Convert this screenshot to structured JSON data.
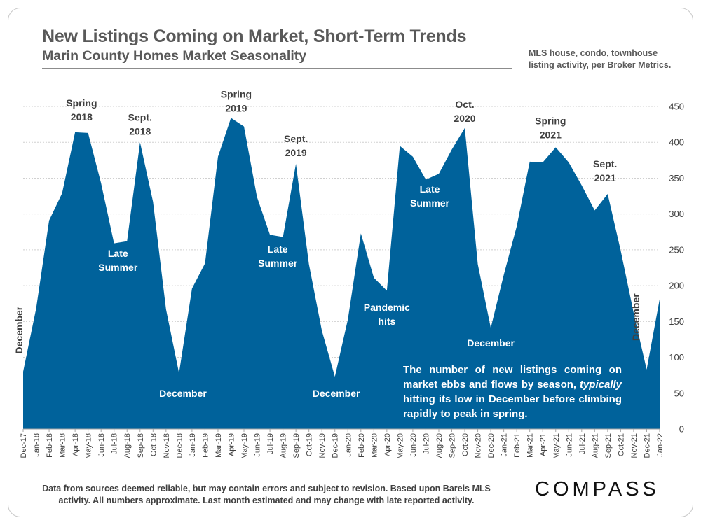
{
  "header": {
    "title": "New Listings Coming on Market, Short-Term Trends",
    "subtitle": "Marin County Homes Market Seasonality",
    "note_line1": "MLS house, condo, townhouse",
    "note_line2": "listing activity, per Broker Metrics."
  },
  "footer": {
    "disclaimer_line1": "Data from sources deemed reliable, but may contain errors and subject to revision. Based upon Bareis MLS",
    "disclaimer_line2": "activity. All numbers approximate. Last month estimated and may change with late reported activity.",
    "logo": "COMPASS"
  },
  "callout": {
    "before": "The number of new listings coming on market ebbs and flows by season,",
    "emphasis": "typically",
    "after": "hitting its low in December before climbing rapidly to peak in  spring."
  },
  "colors": {
    "area": "#00629b",
    "text": "#595959",
    "dark_label": "#404040",
    "white": "#ffffff"
  },
  "chart_data": {
    "type": "area",
    "title": "New Listings Coming on Market, Short-Term Trends",
    "xlabel": "",
    "ylabel": "",
    "ylim": [
      0,
      450
    ],
    "yticks": [
      0,
      50,
      100,
      150,
      200,
      250,
      300,
      350,
      400,
      450
    ],
    "grid": true,
    "categories": [
      "Dec-17",
      "Jan-18",
      "Feb-18",
      "Mar-18",
      "Apr-18",
      "May-18",
      "Jun-18",
      "Jul-18",
      "Aug-18",
      "Sep-18",
      "Oct-18",
      "Nov-18",
      "Dec-18",
      "Jan-19",
      "Feb-19",
      "Mar-19",
      "Apr-19",
      "May-19",
      "Jun-19",
      "Jul-19",
      "Aug-19",
      "Sep-19",
      "Oct-19",
      "Nov-19",
      "Dec-19",
      "Jan-20",
      "Feb-20",
      "Mar-20",
      "Apr-20",
      "May-20",
      "Jun-20",
      "Jul-20",
      "Aug-20",
      "Sep-20",
      "Oct-20",
      "Nov-20",
      "Dec-20",
      "Jan-21",
      "Feb-21",
      "Mar-21",
      "Apr-21",
      "May-21",
      "Jun-21",
      "Jul-21",
      "Aug-21",
      "Sep-21",
      "Oct-21",
      "Nov-21",
      "Dec-21",
      "Jan-22"
    ],
    "labeled_categories": [
      "Dec-17",
      "Jan-18",
      "Feb-18",
      "Mar-18",
      "Apr-18",
      "May-18",
      "Jun-18",
      "Jul-18",
      "Aug-18",
      "Sep-18",
      "Oct-18",
      "Nov-18",
      "Dec-18",
      "Jan-19",
      "Feb-19",
      "Mar-19",
      "Apr-19",
      "May-19",
      "Jun-19",
      "Jul-19",
      "Aug-19",
      "Sep-19",
      "Oct-19",
      "Nov-19",
      "Dec-19",
      "Jan-20",
      "Feb-20",
      "Mar-20",
      "Apr-20",
      "May-20",
      "Jun-20",
      "Jul-20",
      "Aug-20",
      "Sep-20",
      "Oct-20",
      "Nov-20",
      "Dec-20",
      "Jan-21",
      "Feb-21",
      "Mar-21",
      "Apr-21",
      "May-21",
      "Jun-21",
      "Jul-21",
      "Aug-21",
      "Sep-21",
      "Oct-21",
      "Nov-21",
      "Dec-21",
      "Jan-22"
    ],
    "series": [
      {
        "name": "New Listings",
        "values": [
          80,
          168,
          291,
          329,
          414,
          413,
          343,
          259,
          262,
          400,
          317,
          167,
          78,
          196,
          231,
          380,
          434,
          422,
          324,
          271,
          268,
          370,
          230,
          137,
          73,
          153,
          273,
          211,
          193,
          395,
          380,
          348,
          356,
          390,
          420,
          230,
          141,
          215,
          283,
          373,
          372,
          393,
          372,
          340,
          305,
          328,
          249,
          162,
          83,
          181
        ]
      }
    ],
    "annotations": [
      {
        "text": [
          "Spring",
          "2018"
        ],
        "idx": 4.5,
        "val": 450,
        "color": "dark",
        "rotate": false
      },
      {
        "text": [
          "Sept.",
          "2018"
        ],
        "idx": 9,
        "val": 430,
        "color": "dark",
        "rotate": false
      },
      {
        "text": [
          "Late",
          "Summer"
        ],
        "idx": 7.3,
        "val": 240,
        "color": "white",
        "rotate": false
      },
      {
        "text": [
          "December"
        ],
        "idx": 12.3,
        "val": 45,
        "color": "white",
        "rotate": false
      },
      {
        "text": [
          "Spring",
          "2019"
        ],
        "idx": 16.4,
        "val": 462,
        "color": "dark",
        "rotate": false
      },
      {
        "text": [
          "Sept.",
          "2019"
        ],
        "idx": 21,
        "val": 400,
        "color": "dark",
        "rotate": false
      },
      {
        "text": [
          "Late",
          "Summer"
        ],
        "idx": 19.6,
        "val": 246,
        "color": "white",
        "rotate": false
      },
      {
        "text": [
          "December"
        ],
        "idx": 24.1,
        "val": 45,
        "color": "white",
        "rotate": false
      },
      {
        "text": [
          "Pandemic",
          "hits"
        ],
        "idx": 28,
        "val": 165,
        "color": "white",
        "rotate": false
      },
      {
        "text": [
          "Late",
          "Summer"
        ],
        "idx": 31.3,
        "val": 330,
        "color": "white",
        "rotate": false
      },
      {
        "text": [
          "Oct.",
          "2020"
        ],
        "idx": 34,
        "val": 448,
        "color": "dark",
        "rotate": false
      },
      {
        "text": [
          "December"
        ],
        "idx": 36,
        "val": 115,
        "color": "white",
        "rotate": false
      },
      {
        "text": [
          "Spring",
          "2021"
        ],
        "idx": 40.6,
        "val": 425,
        "color": "dark",
        "rotate": false
      },
      {
        "text": [
          "Sept.",
          "2021"
        ],
        "idx": 44.8,
        "val": 365,
        "color": "dark",
        "rotate": false
      },
      {
        "text": [
          "December"
        ],
        "idx": 0,
        "val": 138,
        "color": "dark",
        "rotate": true
      },
      {
        "text": [
          "December"
        ],
        "idx": 47.5,
        "val": 156,
        "color": "dark",
        "rotate": true
      }
    ]
  }
}
